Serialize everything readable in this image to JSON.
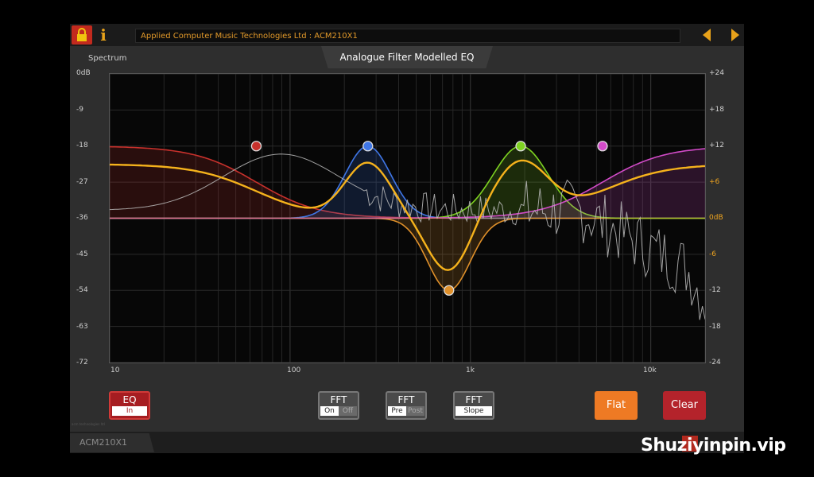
{
  "header": {
    "title": "Applied Computer Music Technologies Ltd  :  ACM210X1",
    "lock_icon": "lock-icon",
    "info_icon": "info-icon",
    "info_glyph": "i",
    "prev_icon": "arrow-left-icon",
    "next_icon": "arrow-right-icon"
  },
  "tab": {
    "label": "Analogue Filter Modelled EQ"
  },
  "spectrum_label": "Spectrum",
  "chart_data": {
    "type": "line",
    "x_scale": "log",
    "xlim": [
      10,
      20000
    ],
    "x_ticks": [
      "10",
      "100",
      "1k",
      "10k"
    ],
    "y_left_label": "Spectrum",
    "y_left_ticks": [
      "0dB",
      "-9",
      "-18",
      "-27",
      "-36",
      "-45",
      "-54",
      "-63",
      "-72"
    ],
    "y_left_range": [
      -72,
      0
    ],
    "y_right_ticks": [
      "+24",
      "+18",
      "+12",
      "+6",
      "0dB",
      "-6",
      "-12",
      "-18",
      "-24"
    ],
    "y_right_highlight": [
      "+6",
      "0dB",
      "-6"
    ],
    "y_right_range": [
      -24,
      24
    ],
    "bands": [
      {
        "type": "low-shelf",
        "freq": 65,
        "gain": 12,
        "color": "#c8312c"
      },
      {
        "type": "peak",
        "freq": 270,
        "gain": 12,
        "q": 1.2,
        "color": "#3f76e6"
      },
      {
        "type": "peak",
        "freq": 760,
        "gain": -12,
        "q": 1.3,
        "color": "#e0902a"
      },
      {
        "type": "peak",
        "freq": 1900,
        "gain": 12,
        "q": 1.0,
        "color": "#7ed321"
      },
      {
        "type": "high-shelf",
        "freq": 5400,
        "gain": 12,
        "color": "#d24bc8"
      }
    ],
    "combined_color": "#f5b21c",
    "spectrum_color": "#bdbdbd"
  },
  "buttons": {
    "eq": {
      "label": "EQ",
      "state": "In"
    },
    "fft_onoff": {
      "label": "FFT",
      "options": [
        "On",
        "Off"
      ],
      "selected": "On"
    },
    "fft_prepost": {
      "label": "FFT",
      "options": [
        "Pre",
        "Post"
      ],
      "selected": "Pre"
    },
    "fft_slope": {
      "label": "FFT",
      "state": "Slope"
    },
    "flat": "Flat",
    "clear": "Clear"
  },
  "footer": {
    "product": "ACM210X1",
    "tiny_credit": "acm technologies ltd"
  },
  "watermark": "Shuziyinpin.vip"
}
